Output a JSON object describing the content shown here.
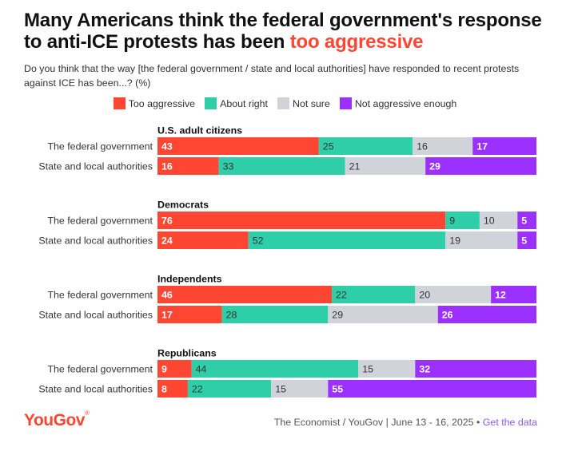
{
  "title": {
    "main": "Many Americans think the federal government's response to anti-ICE protests has been ",
    "highlight": "too aggressive"
  },
  "subtitle": "Do you think that the way [the federal government / state and local authorities] have responded to recent protests against ICE has been...? (%)",
  "footer": {
    "logo": "YouGov",
    "logo_mark": "®",
    "source": "The Economist / YouGov | June 13 - 16, 2025 • ",
    "link": "Get the data"
  },
  "chart_data": {
    "type": "bar",
    "orientation": "horizontal",
    "stacked": true,
    "series": [
      {
        "name": "Too aggressive",
        "color": "#ff4632"
      },
      {
        "name": "About right",
        "color": "#2ecfa8"
      },
      {
        "name": "Not sure",
        "color": "#d1d3db"
      },
      {
        "name": "Not aggressive enough",
        "color": "#9b30ff"
      }
    ],
    "label_colors": [
      "#ffffff",
      "#333333",
      "#333333",
      "#ffffff"
    ],
    "groups": [
      {
        "name": "U.S. adult citizens",
        "rows": [
          {
            "label": "The federal government",
            "values": [
              43,
              25,
              16,
              17
            ]
          },
          {
            "label": "State and local authorities",
            "values": [
              16,
              33,
              21,
              29
            ]
          }
        ]
      },
      {
        "name": "Democrats",
        "rows": [
          {
            "label": "The federal government",
            "values": [
              76,
              9,
              10,
              5
            ]
          },
          {
            "label": "State and local authorities",
            "values": [
              24,
              52,
              19,
              5
            ]
          }
        ]
      },
      {
        "name": "Independents",
        "rows": [
          {
            "label": "The federal government",
            "values": [
              46,
              22,
              20,
              12
            ]
          },
          {
            "label": "State and local authorities",
            "values": [
              17,
              28,
              29,
              26
            ]
          }
        ]
      },
      {
        "name": "Republicans",
        "rows": [
          {
            "label": "The federal government",
            "values": [
              9,
              44,
              15,
              32
            ]
          },
          {
            "label": "State and local authorities",
            "values": [
              8,
              22,
              15,
              55
            ]
          }
        ]
      }
    ]
  }
}
